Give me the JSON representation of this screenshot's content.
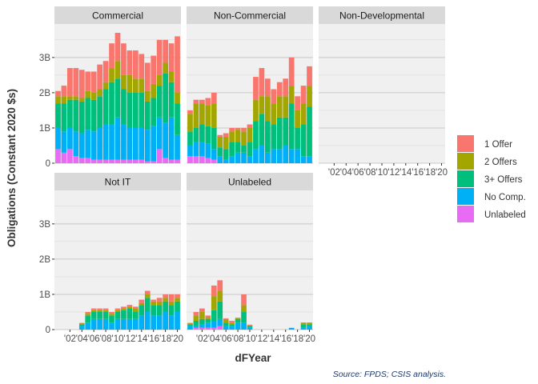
{
  "chart_data": {
    "type": "bar",
    "stacked": true,
    "faceted": true,
    "ylabel": "Obligations (Constant 2020 $s)",
    "xlabel": "dFYear",
    "caption": "Source: FPDS; CSIS analysis.",
    "years": [
      2000,
      2001,
      2002,
      2003,
      2004,
      2005,
      2006,
      2007,
      2008,
      2009,
      2010,
      2011,
      2012,
      2013,
      2014,
      2015,
      2016,
      2017,
      2018,
      2019,
      2020
    ],
    "x_tick_labels": [
      "'02",
      "'04",
      "'06",
      "'08",
      "'10",
      "'12",
      "'14",
      "'16",
      "'18",
      "'20"
    ],
    "x_tick_years": [
      2002,
      2004,
      2006,
      2008,
      2010,
      2012,
      2014,
      2016,
      2018,
      2020
    ],
    "y_tick_labels": [
      "0",
      "1B",
      "2B",
      "3B"
    ],
    "y_tick_values": [
      0,
      1,
      2,
      3
    ],
    "ylim": [
      0,
      3.95
    ],
    "y_unit": "billions",
    "stack_order": [
      "Unlabeled",
      "No Comp.",
      "3+ Offers",
      "2 Offers",
      "1 Offer"
    ],
    "legend": {
      "placement": "right",
      "entries": [
        {
          "label": "1 Offer",
          "color": "#F8766D"
        },
        {
          "label": "2 Offers",
          "color": "#A3A500"
        },
        {
          "label": "3+ Offers",
          "color": "#00BF7D"
        },
        {
          "label": "No Comp.",
          "color": "#00B0F6"
        },
        {
          "label": "Unlabeled",
          "color": "#E76BF3"
        }
      ]
    },
    "panels": [
      {
        "name": "Commercial",
        "series": {
          "Unlabeled": [
            0.4,
            0.3,
            0.4,
            0.2,
            0.15,
            0.15,
            0.1,
            0.1,
            0.1,
            0.1,
            0.1,
            0.1,
            0.1,
            0.1,
            0.1,
            0.05,
            0.05,
            0.4,
            0.15,
            0.1,
            0.1
          ],
          "No Comp.": [
            0.6,
            0.6,
            0.6,
            0.7,
            0.7,
            0.8,
            0.8,
            0.9,
            1.0,
            1.0,
            1.2,
            1.0,
            0.9,
            0.9,
            0.9,
            0.9,
            1.0,
            0.9,
            1.0,
            1.2,
            0.7
          ],
          "3+ Offers": [
            0.7,
            0.8,
            0.8,
            0.9,
            0.9,
            0.9,
            0.9,
            0.9,
            1.0,
            1.2,
            1.1,
            1.0,
            1.0,
            1.0,
            1.0,
            0.8,
            0.8,
            0.9,
            1.4,
            1.0,
            0.9
          ],
          "2 Offers": [
            0.2,
            0.2,
            0.1,
            0.1,
            0.1,
            0.2,
            0.2,
            0.2,
            0.2,
            0.4,
            0.5,
            0.4,
            0.5,
            0.4,
            0.4,
            0.3,
            0.4,
            0.3,
            0.3,
            0.3,
            0.3
          ],
          "1 Offer": [
            0.15,
            0.3,
            0.8,
            0.8,
            0.8,
            0.55,
            0.6,
            0.7,
            0.6,
            0.7,
            0.8,
            0.9,
            0.7,
            0.8,
            0.7,
            0.8,
            0.8,
            1.0,
            0.65,
            0.8,
            1.6
          ]
        }
      },
      {
        "name": "Non-Commercial",
        "series": {
          "Unlabeled": [
            0.2,
            0.2,
            0.2,
            0.15,
            0.1,
            0.0,
            0.0,
            0.0,
            0.0,
            0.0,
            0.0,
            0.0,
            0.0,
            0.0,
            0.0,
            0.0,
            0.0,
            0.0,
            0.0,
            0.0,
            0.0
          ],
          "No Comp.": [
            0.3,
            0.4,
            0.4,
            0.4,
            0.3,
            0.2,
            0.1,
            0.2,
            0.3,
            0.3,
            0.2,
            0.4,
            0.5,
            0.3,
            0.4,
            0.4,
            0.5,
            0.4,
            0.4,
            0.2,
            0.2
          ],
          "3+ Offers": [
            0.4,
            0.4,
            0.5,
            0.5,
            0.6,
            0.25,
            0.3,
            0.4,
            0.3,
            0.2,
            0.4,
            0.8,
            0.9,
            0.9,
            0.7,
            0.9,
            0.8,
            1.3,
            0.6,
            0.9,
            1.4
          ],
          "2 Offers": [
            0.5,
            0.7,
            0.6,
            0.6,
            0.7,
            0.3,
            0.35,
            0.3,
            0.35,
            0.4,
            0.4,
            0.6,
            0.5,
            0.7,
            0.6,
            0.6,
            0.6,
            0.5,
            0.5,
            0.6,
            0.6
          ],
          "1 Offer": [
            0.1,
            0.1,
            0.1,
            0.2,
            0.3,
            0.05,
            0.1,
            0.1,
            0.05,
            0.1,
            0.1,
            0.65,
            0.8,
            0.5,
            0.4,
            0.4,
            0.5,
            0.8,
            0.4,
            0.5,
            0.55
          ]
        }
      },
      {
        "name": "Non-Developmental",
        "series": {
          "Unlabeled": [
            0,
            0,
            0,
            0,
            0,
            0,
            0,
            0,
            0,
            0,
            0,
            0,
            0,
            0,
            0,
            0,
            0,
            0,
            0,
            0,
            0
          ],
          "No Comp.": [
            0,
            0,
            0,
            0,
            0,
            0,
            0,
            0,
            0,
            0,
            0,
            0,
            0,
            0,
            0,
            0,
            0,
            0,
            0,
            0,
            0
          ],
          "3+ Offers": [
            0,
            0,
            0,
            0,
            0,
            0,
            0,
            0,
            0,
            0,
            0,
            0,
            0,
            0,
            0,
            0,
            0,
            0,
            0,
            0,
            0
          ],
          "2 Offers": [
            0,
            0,
            0,
            0,
            0,
            0,
            0,
            0,
            0,
            0,
            0,
            0,
            0,
            0,
            0,
            0,
            0,
            0,
            0,
            0,
            0
          ],
          "1 Offer": [
            0,
            0,
            0,
            0,
            0,
            0,
            0,
            0,
            0,
            0,
            0,
            0,
            0,
            0,
            0,
            0,
            0,
            0,
            0,
            0,
            0
          ]
        }
      },
      {
        "name": "Not IT",
        "series": {
          "Unlabeled": [
            0,
            0,
            0,
            0,
            0,
            0,
            0,
            0,
            0,
            0,
            0,
            0,
            0,
            0,
            0,
            0,
            0,
            0,
            0,
            0,
            0
          ],
          "No Comp.": [
            0,
            0,
            0,
            0,
            0.1,
            0.2,
            0.3,
            0.3,
            0.3,
            0.2,
            0.3,
            0.3,
            0.3,
            0.3,
            0.4,
            0.5,
            0.4,
            0.4,
            0.5,
            0.4,
            0.5
          ],
          "3+ Offers": [
            0,
            0,
            0,
            0,
            0.05,
            0.2,
            0.2,
            0.2,
            0.2,
            0.2,
            0.2,
            0.25,
            0.3,
            0.2,
            0.3,
            0.4,
            0.3,
            0.3,
            0.3,
            0.3,
            0.3
          ],
          "2 Offers": [
            0,
            0,
            0,
            0,
            0.02,
            0.05,
            0.05,
            0.05,
            0.05,
            0.05,
            0.05,
            0.05,
            0.05,
            0.1,
            0.05,
            0.1,
            0.1,
            0.1,
            0.1,
            0.1,
            0.1
          ],
          "1 Offer": [
            0,
            0,
            0,
            0,
            0.02,
            0.05,
            0.05,
            0.05,
            0.05,
            0.05,
            0.05,
            0.05,
            0.05,
            0.05,
            0.1,
            0.1,
            0.05,
            0.1,
            0.1,
            0.2,
            0.1
          ]
        }
      },
      {
        "name": "Unlabeled",
        "series": {
          "Unlabeled": [
            0,
            0.05,
            0.05,
            0.05,
            0.05,
            0.1,
            0,
            0,
            0,
            0,
            0,
            0,
            0,
            0,
            0,
            0,
            0,
            0,
            0,
            0,
            0
          ],
          "No Comp.": [
            0.1,
            0.05,
            0.1,
            0.15,
            0.2,
            0.2,
            0.1,
            0.1,
            0.2,
            0.2,
            0.05,
            0,
            0,
            0,
            0,
            0,
            0,
            0.05,
            0,
            0.05,
            0.1
          ],
          "3+ Offers": [
            0.05,
            0.15,
            0.15,
            0.1,
            0.3,
            0.5,
            0.1,
            0.05,
            0.1,
            0.3,
            0.05,
            0,
            0,
            0,
            0,
            0,
            0,
            0,
            0,
            0.1,
            0.05
          ],
          "2 Offers": [
            0.02,
            0.15,
            0.2,
            0.05,
            0.4,
            0.3,
            0.1,
            0.05,
            0.02,
            0.2,
            0.02,
            0,
            0,
            0,
            0,
            0,
            0,
            0,
            0,
            0.05,
            0.05
          ],
          "1 Offer": [
            0.02,
            0.1,
            0.1,
            0.05,
            0.3,
            0.3,
            0.02,
            0.05,
            0.02,
            0.3,
            0.02,
            0,
            0,
            0,
            0,
            0,
            0,
            0,
            0,
            0,
            0
          ]
        }
      }
    ]
  }
}
